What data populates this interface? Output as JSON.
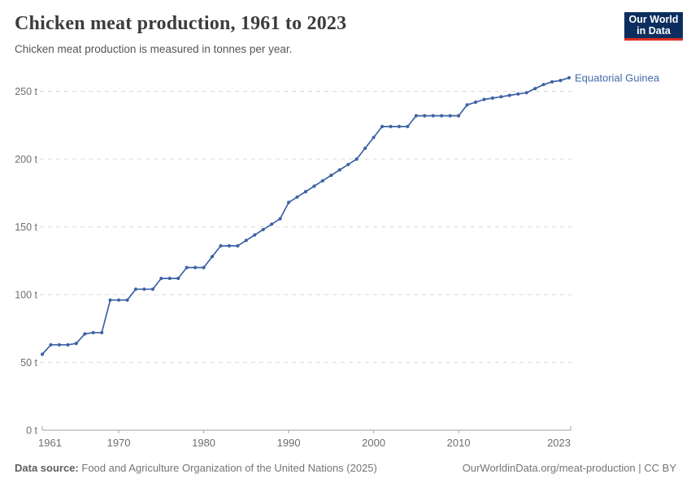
{
  "header": {
    "title": "Chicken meat production, 1961 to 2023",
    "subtitle": "Chicken meat production is measured in tonnes per year.",
    "logo_line1": "Our World",
    "logo_line2": "in Data"
  },
  "footer": {
    "source_label": "Data source:",
    "source_text": "Food and Agriculture Organization of the United Nations (2025)",
    "link_text": "OurWorldinData.org/meat-production | CC BY"
  },
  "chart_data": {
    "type": "line",
    "title": "Chicken meat production, 1961 to 2023",
    "xlabel": "",
    "ylabel": "",
    "unit": "t",
    "grid": "horizontal-dashed",
    "legend_position": "end-of-line-label",
    "xlim": [
      1961,
      2023
    ],
    "ylim": [
      0,
      262
    ],
    "x_ticks": [
      1961,
      1970,
      1980,
      1990,
      2000,
      2010,
      2023
    ],
    "x_tick_labels": [
      "1961",
      "1970",
      "1980",
      "1990",
      "2000",
      "2010",
      "2023"
    ],
    "y_ticks": [
      0,
      50,
      100,
      150,
      200,
      250
    ],
    "y_tick_labels": [
      "0 t",
      "50 t",
      "100 t",
      "150 t",
      "200 t",
      "250 t"
    ],
    "line_color": "#3d63a4",
    "dot_color": "#3d63a4",
    "label_color": "#4169a9",
    "axis_color": "#a3a3a3",
    "grid_color": "#d9d9d9",
    "tick_text_color": "#6e6e6e",
    "series": [
      {
        "name": "Equatorial Guinea",
        "x": [
          1961,
          1962,
          1963,
          1964,
          1965,
          1966,
          1967,
          1968,
          1969,
          1970,
          1971,
          1972,
          1973,
          1974,
          1975,
          1976,
          1977,
          1978,
          1979,
          1980,
          1981,
          1982,
          1983,
          1984,
          1985,
          1986,
          1987,
          1988,
          1989,
          1990,
          1991,
          1992,
          1993,
          1994,
          1995,
          1996,
          1997,
          1998,
          1999,
          2000,
          2001,
          2002,
          2003,
          2004,
          2005,
          2006,
          2007,
          2008,
          2009,
          2010,
          2011,
          2012,
          2013,
          2014,
          2015,
          2016,
          2017,
          2018,
          2019,
          2020,
          2021,
          2022,
          2023
        ],
        "values": [
          56,
          63,
          63,
          63,
          64,
          71,
          72,
          72,
          96,
          96,
          96,
          104,
          104,
          104,
          112,
          112,
          112,
          120,
          120,
          120,
          128,
          136,
          136,
          136,
          140,
          144,
          148,
          152,
          156,
          168,
          172,
          176,
          180,
          184,
          188,
          192,
          196,
          200,
          208,
          216,
          224,
          224,
          224,
          224,
          232,
          232,
          232,
          232,
          232,
          232,
          240,
          242,
          244,
          245,
          246,
          247,
          248,
          249,
          252,
          255,
          257,
          258,
          260
        ]
      }
    ]
  }
}
